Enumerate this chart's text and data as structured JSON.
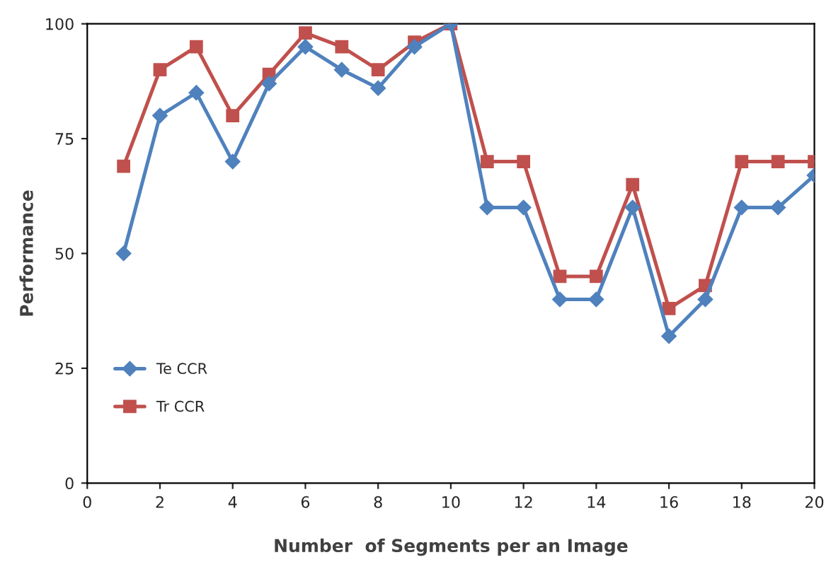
{
  "chart_data": {
    "type": "line",
    "xlabel": "Number  of Segments per an Image",
    "ylabel": "Performance",
    "x": [
      1,
      2,
      3,
      4,
      5,
      6,
      7,
      8,
      9,
      10,
      11,
      12,
      13,
      14,
      15,
      16,
      17,
      18,
      19,
      20
    ],
    "series": [
      {
        "name": "Te CCR",
        "color": "#4f81bd",
        "marker": "diamond",
        "values": [
          50,
          80,
          85,
          70,
          87,
          95,
          90,
          86,
          95,
          100,
          60,
          60,
          40,
          40,
          60,
          32,
          40,
          60,
          60,
          67
        ]
      },
      {
        "name": "Tr CCR",
        "color": "#c0504d",
        "marker": "square",
        "values": [
          69,
          90,
          95,
          80,
          89,
          98,
          95,
          90,
          96,
          100,
          70,
          70,
          45,
          45,
          65,
          38,
          43,
          70,
          70,
          70
        ]
      }
    ],
    "xlim": [
      0,
      20
    ],
    "xticks": [
      0,
      2,
      4,
      6,
      8,
      10,
      12,
      14,
      16,
      18,
      20
    ],
    "ylim": [
      0,
      100
    ],
    "yticks": [
      0,
      25,
      50,
      75,
      100
    ],
    "grid": false,
    "legend": "bottom left",
    "line_style": "solid"
  }
}
